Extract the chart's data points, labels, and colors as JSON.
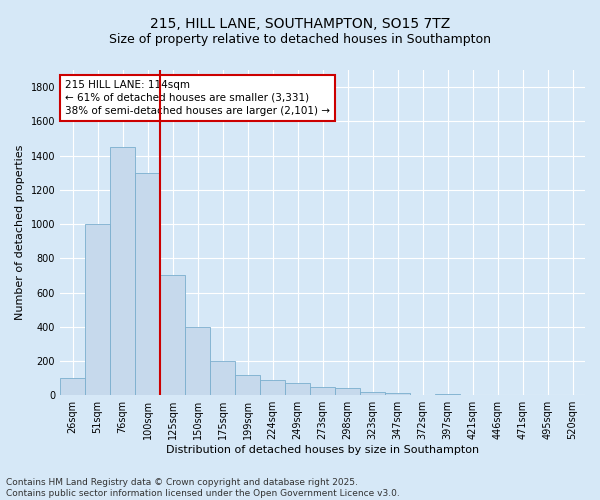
{
  "title_line1": "215, HILL LANE, SOUTHAMPTON, SO15 7TZ",
  "title_line2": "Size of property relative to detached houses in Southampton",
  "xlabel": "Distribution of detached houses by size in Southampton",
  "ylabel": "Number of detached properties",
  "categories": [
    "26sqm",
    "51sqm",
    "76sqm",
    "100sqm",
    "125sqm",
    "150sqm",
    "175sqm",
    "199sqm",
    "224sqm",
    "249sqm",
    "273sqm",
    "298sqm",
    "323sqm",
    "347sqm",
    "372sqm",
    "397sqm",
    "421sqm",
    "446sqm",
    "471sqm",
    "495sqm",
    "520sqm"
  ],
  "values": [
    100,
    1000,
    1450,
    1300,
    700,
    400,
    200,
    120,
    90,
    70,
    50,
    40,
    20,
    10,
    0,
    5,
    0,
    0,
    0,
    0,
    0
  ],
  "bar_color": "#c6d9ec",
  "bar_edge_color": "#7aaece",
  "vline_color": "#cc0000",
  "vline_x_index": 3,
  "annotation_text": "215 HILL LANE: 114sqm\n← 61% of detached houses are smaller (3,331)\n38% of semi-detached houses are larger (2,101) →",
  "annotation_box_facecolor": "#ffffff",
  "annotation_box_edgecolor": "#cc0000",
  "ylim": [
    0,
    1900
  ],
  "yticks": [
    0,
    200,
    400,
    600,
    800,
    1000,
    1200,
    1400,
    1600,
    1800
  ],
  "bg_color": "#d6e8f7",
  "plot_bg_color": "#d6e8f7",
  "footer_text": "Contains HM Land Registry data © Crown copyright and database right 2025.\nContains public sector information licensed under the Open Government Licence v3.0.",
  "title_fontsize": 10,
  "subtitle_fontsize": 9,
  "tick_fontsize": 7,
  "ylabel_fontsize": 8,
  "xlabel_fontsize": 8,
  "footer_fontsize": 6.5,
  "annotation_fontsize": 7.5
}
